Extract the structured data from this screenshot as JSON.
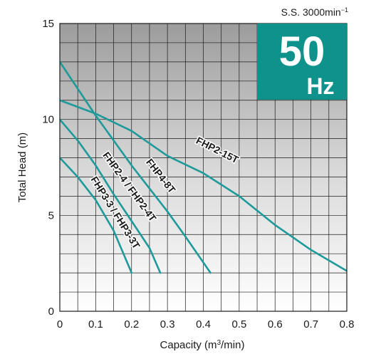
{
  "chart_data": {
    "type": "line",
    "xlabel": "Capacity (m3/min)",
    "ylabel": "Total Head (m)",
    "xlim": [
      0,
      0.8
    ],
    "ylim": [
      0,
      15
    ],
    "x_ticks": [
      "0",
      "0.1",
      "0.2",
      "0.3",
      "0.4",
      "0.5",
      "0.6",
      "0.7",
      "0.8"
    ],
    "y_ticks": [
      "0",
      "5",
      "10",
      "15"
    ],
    "grid": true,
    "speed_note": "S.S. 3000min",
    "frequency_badge": {
      "value": "50",
      "unit": "Hz",
      "color": "#0f918c"
    },
    "line_color": "#1f9a9a",
    "series": [
      {
        "name": "FHP2-15T",
        "points": [
          [
            0,
            11
          ],
          [
            0.1,
            10.3
          ],
          [
            0.2,
            9.4
          ],
          [
            0.3,
            8.1
          ],
          [
            0.4,
            7.2
          ],
          [
            0.5,
            6
          ],
          [
            0.6,
            4.5
          ],
          [
            0.7,
            3.2
          ],
          [
            0.8,
            2.1
          ]
        ]
      },
      {
        "name": "FHP4-8T",
        "points": [
          [
            0,
            13
          ],
          [
            0.05,
            11.6
          ],
          [
            0.1,
            10.2
          ],
          [
            0.15,
            8.9
          ],
          [
            0.2,
            7.6
          ],
          [
            0.25,
            6.4
          ],
          [
            0.3,
            5.2
          ],
          [
            0.35,
            3.9
          ],
          [
            0.42,
            2
          ]
        ]
      },
      {
        "name": "FHP2-4 / FHP2-4T",
        "points": [
          [
            0,
            10
          ],
          [
            0.05,
            8.9
          ],
          [
            0.1,
            7.6
          ],
          [
            0.15,
            6.1
          ],
          [
            0.2,
            4.7
          ],
          [
            0.25,
            3.3
          ],
          [
            0.28,
            2
          ]
        ]
      },
      {
        "name": "FHP3-3 / FHP3-3T",
        "points": [
          [
            0,
            8
          ],
          [
            0.05,
            7
          ],
          [
            0.1,
            5.8
          ],
          [
            0.15,
            4.2
          ],
          [
            0.2,
            2
          ]
        ]
      }
    ]
  }
}
